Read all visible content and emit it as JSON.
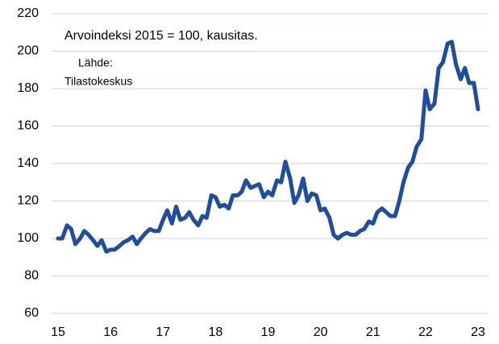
{
  "chart_data": {
    "type": "line",
    "annotations": [
      "Arvoindeksi 2015 = 100, kausitas.",
      "Lähde:",
      "Tilastokeskus"
    ],
    "x": [
      15.0,
      15.08,
      15.17,
      15.25,
      15.33,
      15.42,
      15.5,
      15.58,
      15.67,
      15.75,
      15.83,
      15.92,
      16.0,
      16.08,
      16.17,
      16.25,
      16.33,
      16.42,
      16.5,
      16.58,
      16.67,
      16.75,
      16.83,
      16.92,
      17.0,
      17.08,
      17.17,
      17.25,
      17.33,
      17.42,
      17.5,
      17.58,
      17.67,
      17.75,
      17.83,
      17.92,
      18.0,
      18.08,
      18.17,
      18.25,
      18.33,
      18.42,
      18.5,
      18.58,
      18.67,
      18.75,
      18.83,
      18.92,
      19.0,
      19.08,
      19.17,
      19.25,
      19.33,
      19.42,
      19.5,
      19.58,
      19.67,
      19.75,
      19.83,
      19.92,
      20.0,
      20.08,
      20.17,
      20.25,
      20.33,
      20.42,
      20.5,
      20.58,
      20.67,
      20.75,
      20.83,
      20.92,
      21.0,
      21.08,
      21.17,
      21.25,
      21.33,
      21.42,
      21.5,
      21.58,
      21.67,
      21.75,
      21.83,
      21.92,
      22.0,
      22.08,
      22.17,
      22.25,
      22.33,
      22.42,
      22.5,
      22.58,
      22.67,
      22.75,
      22.83,
      22.92,
      23.0
    ],
    "values": [
      100,
      100,
      107,
      105,
      97,
      100,
      104,
      102,
      99,
      96,
      99,
      93,
      94,
      94,
      96,
      98,
      99,
      101,
      97,
      100,
      103,
      105,
      104,
      104,
      110,
      115,
      108,
      117,
      110,
      111,
      114,
      110,
      107,
      112,
      111,
      123,
      122,
      117,
      118,
      116,
      123,
      123,
      125,
      131,
      127,
      128,
      129,
      122,
      125,
      123,
      131,
      130,
      141,
      132,
      119,
      123,
      132,
      120,
      124,
      123,
      115,
      116,
      111,
      102,
      100,
      102,
      103,
      102,
      102,
      104,
      105,
      109,
      108,
      114,
      116,
      114,
      112,
      112,
      120,
      130,
      138,
      141,
      149,
      153,
      179,
      169,
      172,
      191,
      194,
      204,
      205,
      193,
      185,
      191,
      183,
      183,
      169
    ],
    "color": "#1f4e9c",
    "xlim": [
      15,
      23
    ],
    "xticks": [
      15,
      16,
      17,
      18,
      19,
      20,
      21,
      22,
      23
    ],
    "ylim": [
      60,
      220
    ],
    "yticks": [
      60,
      80,
      100,
      120,
      140,
      160,
      180,
      200,
      220
    ],
    "grid": true
  }
}
